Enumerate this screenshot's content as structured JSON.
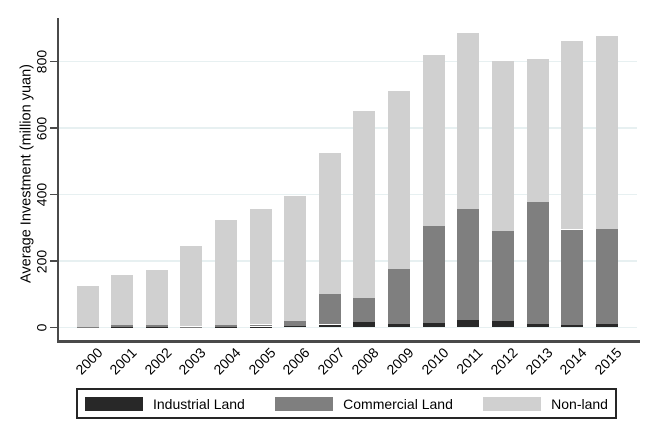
{
  "chart_data": {
    "type": "bar",
    "stacked": true,
    "title": "",
    "xlabel": "",
    "ylabel": "Average Investment (million yuan)",
    "categories": [
      "2000",
      "2001",
      "2002",
      "2003",
      "2004",
      "2005",
      "2006",
      "2007",
      "2008",
      "2009",
      "2010",
      "2011",
      "2012",
      "2013",
      "2014",
      "2015"
    ],
    "series": [
      {
        "name": "Industrial Land",
        "color": "#282828",
        "values": [
          0,
          2,
          2,
          1,
          2,
          3,
          5,
          9,
          18,
          11,
          15,
          22,
          19,
          11,
          8,
          12
        ]
      },
      {
        "name": "Commercial Land",
        "color": "#7f7f7f",
        "values": [
          2,
          5,
          6,
          2,
          5,
          6,
          15,
          91,
          72,
          164,
          290,
          334,
          271,
          367,
          287,
          286
        ]
      },
      {
        "name": "Non-land",
        "color": "#d0d0d0",
        "values": [
          123,
          150,
          165,
          243,
          316,
          348,
          376,
          426,
          562,
          537,
          514,
          531,
          513,
          431,
          568,
          580
        ]
      }
    ],
    "totals": [
      125,
      157,
      173,
      246,
      323,
      357,
      396,
      526,
      652,
      712,
      819,
      887,
      803,
      809,
      863,
      878
    ],
    "yticks": [
      0,
      200,
      400,
      600,
      800
    ],
    "ylim": [
      0,
      935
    ],
    "grid": true,
    "legend_position": "bottom",
    "axis_color": "#4a4a4a",
    "grid_color": "#e7f0f1"
  }
}
